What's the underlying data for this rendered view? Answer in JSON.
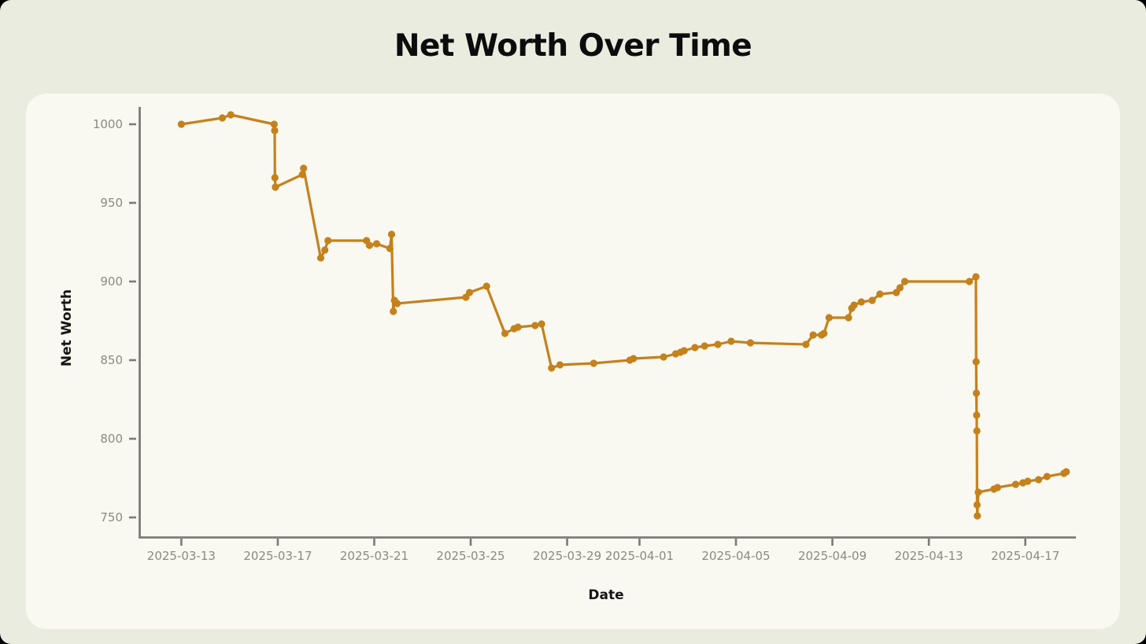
{
  "page": {
    "title": "Net Worth Over Time"
  },
  "chart_data": {
    "type": "line",
    "title": "Net Worth Over Time",
    "xlabel": "Date",
    "ylabel": "Net Worth",
    "series_name": "Net Worth",
    "start_date": "2025-03-13",
    "x_unit": "days since 2025-03-13 (fractional = intraday reading)",
    "grid": false,
    "legend": "none",
    "line_color": "#c4811c",
    "marker_color": "#c4811c",
    "axis_color": "#7c7c77",
    "tick_label_color": "#8a8a82",
    "background_color": "#ebece0",
    "plot_background_color": "#f9f8f1",
    "ylim": [
      737.5,
      1011
    ],
    "xlim_days": [
      -1.71,
      37.1
    ],
    "y_ticks": [
      750,
      800,
      850,
      900,
      950,
      1000
    ],
    "x_ticks": [
      {
        "offset": 0,
        "label": "2025-03-13"
      },
      {
        "offset": 4,
        "label": "2025-03-17"
      },
      {
        "offset": 8,
        "label": "2025-03-21"
      },
      {
        "offset": 12,
        "label": "2025-03-25"
      },
      {
        "offset": 16,
        "label": "2025-03-29"
      },
      {
        "offset": 19,
        "label": "2025-04-01"
      },
      {
        "offset": 23,
        "label": "2025-04-05"
      },
      {
        "offset": 27,
        "label": "2025-04-09"
      },
      {
        "offset": 31,
        "label": "2025-04-13"
      },
      {
        "offset": 35,
        "label": "2025-04-17"
      }
    ],
    "points": [
      [
        0,
        1000
      ],
      [
        1.7,
        1004
      ],
      [
        2.05,
        1006
      ],
      [
        3.85,
        1000
      ],
      [
        3.87,
        996
      ],
      [
        3.88,
        966
      ],
      [
        3.9,
        960
      ],
      [
        5.02,
        968
      ],
      [
        5.07,
        972
      ],
      [
        5.78,
        915
      ],
      [
        5.95,
        920
      ],
      [
        6.08,
        926
      ],
      [
        7.68,
        926
      ],
      [
        7.8,
        923
      ],
      [
        8.1,
        924
      ],
      [
        8.65,
        921
      ],
      [
        8.72,
        930
      ],
      [
        8.79,
        881
      ],
      [
        8.84,
        888
      ],
      [
        8.95,
        886
      ],
      [
        11.8,
        890
      ],
      [
        11.95,
        893
      ],
      [
        12.66,
        897
      ],
      [
        13.42,
        867
      ],
      [
        13.8,
        870
      ],
      [
        13.96,
        871
      ],
      [
        14.67,
        872
      ],
      [
        14.94,
        873
      ],
      [
        15.35,
        845
      ],
      [
        15.7,
        847
      ],
      [
        17.1,
        848
      ],
      [
        18.6,
        850
      ],
      [
        18.75,
        851
      ],
      [
        20,
        852
      ],
      [
        20.5,
        854
      ],
      [
        20.7,
        855
      ],
      [
        20.85,
        856
      ],
      [
        21.3,
        858
      ],
      [
        21.7,
        859
      ],
      [
        22.25,
        860
      ],
      [
        22.8,
        862
      ],
      [
        23.6,
        861
      ],
      [
        25.9,
        860
      ],
      [
        26.2,
        866
      ],
      [
        26.55,
        866
      ],
      [
        26.65,
        867
      ],
      [
        26.86,
        877
      ],
      [
        27.67,
        877
      ],
      [
        27.8,
        883
      ],
      [
        27.9,
        885
      ],
      [
        28.2,
        887
      ],
      [
        28.65,
        888
      ],
      [
        28.97,
        892
      ],
      [
        29.65,
        893
      ],
      [
        29.8,
        896
      ],
      [
        30,
        900
      ],
      [
        32.68,
        900
      ],
      [
        32.95,
        903
      ],
      [
        32.96,
        849
      ],
      [
        32.97,
        829
      ],
      [
        32.98,
        815
      ],
      [
        32.99,
        805
      ],
      [
        33.0,
        758
      ],
      [
        33.01,
        751
      ],
      [
        33.05,
        766
      ],
      [
        33.7,
        768
      ],
      [
        33.85,
        769
      ],
      [
        34.6,
        771
      ],
      [
        34.9,
        772
      ],
      [
        35.1,
        773
      ],
      [
        35.55,
        774
      ],
      [
        35.9,
        776
      ],
      [
        36.6,
        778
      ],
      [
        36.7,
        779
      ]
    ]
  }
}
